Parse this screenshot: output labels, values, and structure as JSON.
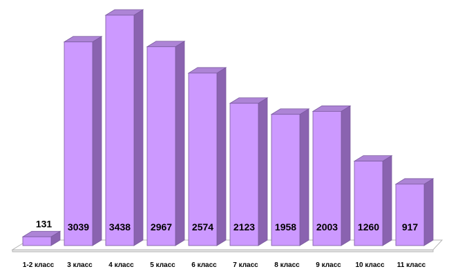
{
  "chart_data": {
    "type": "bar",
    "categories": [
      "1-2 класс",
      "3 класс",
      "4 класс",
      "5 класс",
      "6 класс",
      "7 класс",
      "8 класс",
      "9 класс",
      "10 класс",
      "11 класс"
    ],
    "values": [
      131,
      3039,
      3438,
      2967,
      2574,
      2123,
      1958,
      2003,
      1260,
      917
    ],
    "title": "",
    "xlabel": "",
    "ylabel": "",
    "ylim": [
      0,
      3438
    ],
    "grid": false,
    "legend": "none",
    "colors": {
      "bar_front": "#cc99ff",
      "bar_side": "#8a63b0",
      "bar_top": "#ad84d6",
      "bar_edge": "#7a5a9e",
      "floor": "#ffffff",
      "floor_edge": "#b4b4b4"
    }
  }
}
